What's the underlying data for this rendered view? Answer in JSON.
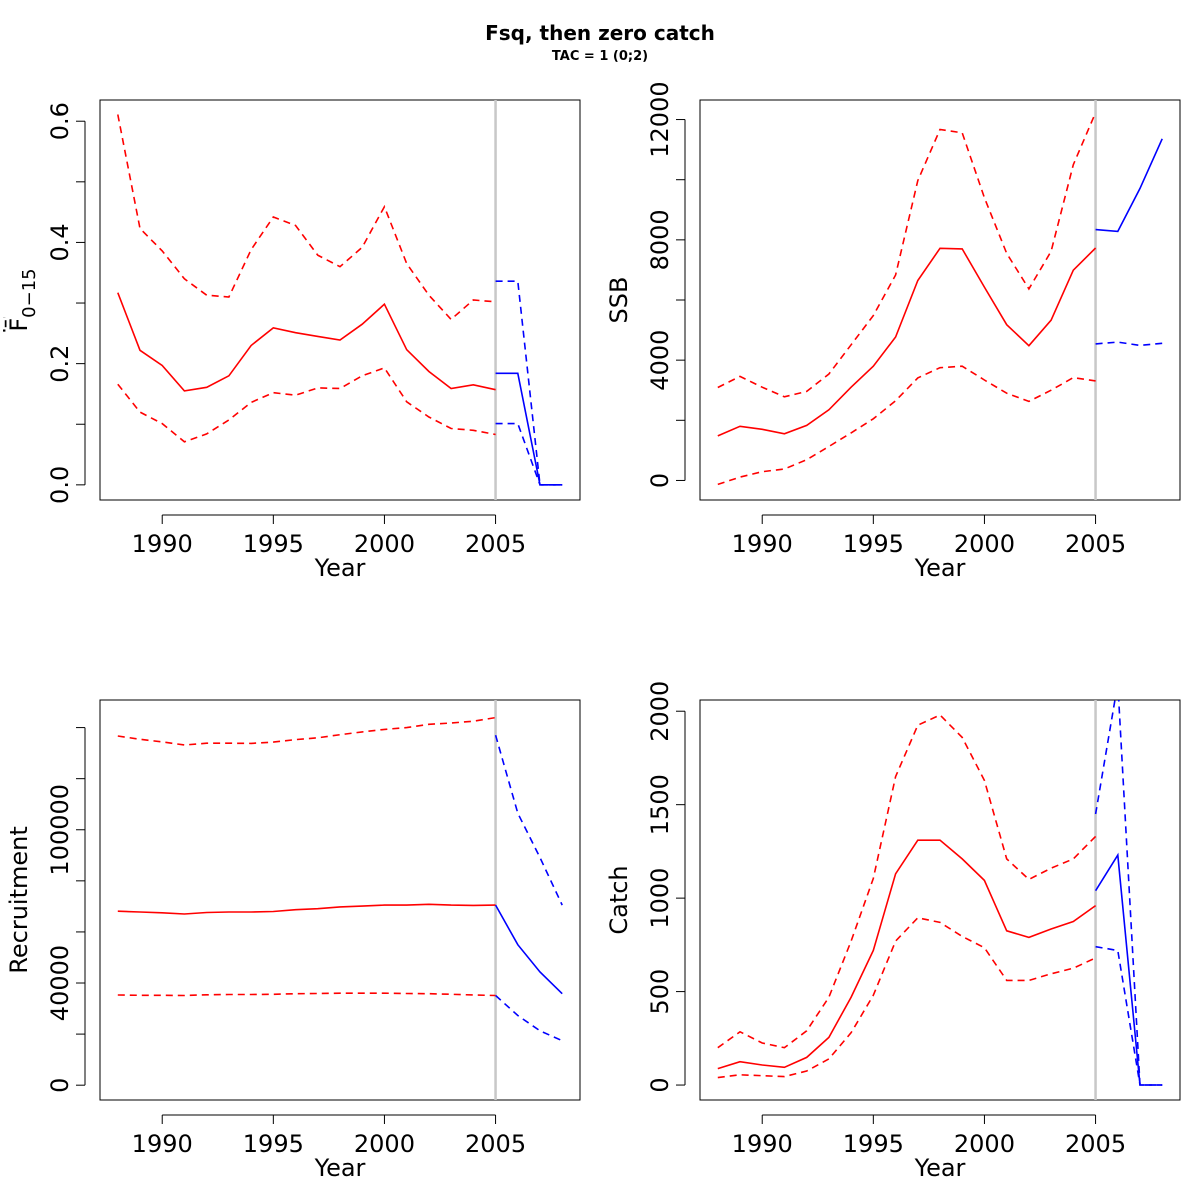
{
  "figure": {
    "title": "Fsq, then zero catch",
    "subtitle": "TAC = 1 (0;2)"
  },
  "colors": {
    "historical": "#ff0000",
    "projection": "#0000ff",
    "divider": "#c8c8c8",
    "axis": "#000000"
  },
  "chart_data": [
    {
      "type": "line",
      "panel": "top-left",
      "xlabel": "Year",
      "ylabel": "F̄",
      "ylabel_sub": "0−15",
      "xlim": [
        1987.2,
        2008.8
      ],
      "ylim": [
        -0.025,
        0.635
      ],
      "xticks": [
        1990,
        1995,
        2000,
        2005
      ],
      "yticks": [
        0.0,
        0.2,
        0.4,
        0.6
      ],
      "ytick_labels": [
        "0.0",
        "0.2",
        "0.4",
        "0.6"
      ],
      "yticks_minor": [
        0.1,
        0.3,
        0.5
      ],
      "divider_x": 2005,
      "series": [
        {
          "group": "historical",
          "style": "solid",
          "x": [
            1988,
            1989,
            1990,
            1991,
            1992,
            1993,
            1994,
            1995,
            1996,
            1997,
            1998,
            1999,
            2000,
            2001,
            2002,
            2003,
            2004,
            2005
          ],
          "y": [
            0.317,
            0.222,
            0.197,
            0.155,
            0.161,
            0.18,
            0.23,
            0.259,
            0.251,
            0.245,
            0.239,
            0.265,
            0.298,
            0.223,
            0.187,
            0.159,
            0.165,
            0.157
          ]
        },
        {
          "group": "historical",
          "style": "dashed",
          "x": [
            1988,
            1989,
            1990,
            1991,
            1992,
            1993,
            1994,
            1995,
            1996,
            1997,
            1998,
            1999,
            2000,
            2001,
            2002,
            2003,
            2004,
            2005
          ],
          "y": [
            0.611,
            0.423,
            0.386,
            0.34,
            0.313,
            0.31,
            0.388,
            0.442,
            0.428,
            0.379,
            0.36,
            0.392,
            0.459,
            0.365,
            0.313,
            0.273,
            0.305,
            0.302
          ]
        },
        {
          "group": "historical",
          "style": "dashed",
          "x": [
            1988,
            1989,
            1990,
            1991,
            1992,
            1993,
            1994,
            1995,
            1996,
            1997,
            1998,
            1999,
            2000,
            2001,
            2002,
            2003,
            2004,
            2005
          ],
          "y": [
            0.166,
            0.12,
            0.101,
            0.071,
            0.084,
            0.107,
            0.136,
            0.152,
            0.148,
            0.16,
            0.159,
            0.18,
            0.193,
            0.137,
            0.112,
            0.093,
            0.09,
            0.083
          ]
        },
        {
          "group": "projection",
          "style": "solid",
          "x": [
            2005,
            2006,
            2007,
            2008
          ],
          "y": [
            0.184,
            0.184,
            0.0,
            0.0
          ]
        },
        {
          "group": "projection",
          "style": "dashed",
          "x": [
            2005,
            2006,
            2007,
            2008
          ],
          "y": [
            0.336,
            0.336,
            0.0,
            0.0
          ]
        },
        {
          "group": "projection",
          "style": "dashed",
          "x": [
            2005,
            2006,
            2007,
            2008
          ],
          "y": [
            0.101,
            0.101,
            0.0,
            0.0
          ]
        }
      ]
    },
    {
      "type": "line",
      "panel": "top-right",
      "xlabel": "Year",
      "ylabel": "SSB",
      "xlim": [
        1987.2,
        2008.8
      ],
      "ylim": [
        -650,
        12650
      ],
      "xticks": [
        1990,
        1995,
        2000,
        2005
      ],
      "yticks": [
        0,
        4000,
        8000,
        12000
      ],
      "ytick_labels": [
        "0",
        "4000",
        "8000",
        "12000"
      ],
      "yticks_minor": [
        2000,
        6000,
        10000
      ],
      "divider_x": 2005,
      "series": [
        {
          "group": "historical",
          "style": "solid",
          "x": [
            1988,
            1989,
            1990,
            1991,
            1992,
            1993,
            1994,
            1995,
            1996,
            1997,
            1998,
            1999,
            2000,
            2001,
            2002,
            2003,
            2004,
            2005
          ],
          "y": [
            1480,
            1800,
            1700,
            1550,
            1830,
            2350,
            3100,
            3800,
            4770,
            6650,
            7720,
            7700,
            6430,
            5180,
            4480,
            5330,
            6990,
            7730
          ]
        },
        {
          "group": "historical",
          "style": "dashed",
          "x": [
            1988,
            1989,
            1990,
            1991,
            1992,
            1993,
            1994,
            1995,
            1996,
            1997,
            1998,
            1999,
            2000,
            2001,
            2002,
            2003,
            2004,
            2005
          ],
          "y": [
            3090,
            3460,
            3100,
            2780,
            2960,
            3540,
            4510,
            5480,
            6830,
            9970,
            11670,
            11560,
            9400,
            7550,
            6370,
            7620,
            10500,
            12230
          ]
        },
        {
          "group": "historical",
          "style": "dashed",
          "x": [
            1988,
            1989,
            1990,
            1991,
            1992,
            1993,
            1994,
            1995,
            1996,
            1997,
            1998,
            1999,
            2000,
            2001,
            2002,
            2003,
            2004,
            2005
          ],
          "y": [
            -130,
            110,
            290,
            380,
            690,
            1130,
            1580,
            2050,
            2650,
            3410,
            3750,
            3800,
            3340,
            2900,
            2630,
            3000,
            3420,
            3310
          ]
        },
        {
          "group": "projection",
          "style": "solid",
          "x": [
            2005,
            2006,
            2007,
            2008
          ],
          "y": [
            8340,
            8280,
            9710,
            11360
          ]
        },
        {
          "group": "projection",
          "style": "dashed",
          "x": [
            2005,
            2006,
            2007,
            2008
          ],
          "y": [
            4540,
            4600,
            4490,
            4560
          ]
        }
      ]
    },
    {
      "type": "line",
      "panel": "bottom-left",
      "xlabel": "Year",
      "ylabel": "Recruitment",
      "xlim": [
        1987.2,
        2008.8
      ],
      "ylim": [
        -5800,
        150800
      ],
      "xticks": [
        1990,
        1995,
        2000,
        2005
      ],
      "yticks": [
        0,
        40000,
        100000
      ],
      "ytick_labels": [
        "0",
        "40000",
        "100000"
      ],
      "yticks_minor": [
        20000,
        60000,
        80000,
        120000,
        140000
      ],
      "divider_x": 2005,
      "series": [
        {
          "group": "historical",
          "style": "solid",
          "x": [
            1988,
            1989,
            1990,
            1991,
            1992,
            1993,
            1994,
            1995,
            1996,
            1997,
            1998,
            1999,
            2000,
            2001,
            2002,
            2003,
            2004,
            2005
          ],
          "y": [
            68100,
            67800,
            67500,
            67000,
            67600,
            67800,
            67800,
            68000,
            68700,
            69100,
            69800,
            70100,
            70500,
            70500,
            70800,
            70500,
            70400,
            70500
          ]
        },
        {
          "group": "historical",
          "style": "dashed",
          "x": [
            1988,
            1989,
            1990,
            1991,
            1992,
            1993,
            1994,
            1995,
            1996,
            1997,
            1998,
            1999,
            2000,
            2001,
            2002,
            2003,
            2004,
            2005
          ],
          "y": [
            136700,
            135400,
            134400,
            133200,
            133900,
            133900,
            133800,
            134300,
            135300,
            136000,
            137200,
            138300,
            139300,
            140000,
            141300,
            141800,
            142500,
            143900
          ]
        },
        {
          "group": "historical",
          "style": "dashed",
          "x": [
            1988,
            1989,
            1990,
            1991,
            1992,
            1993,
            1994,
            1995,
            1996,
            1997,
            1998,
            1999,
            2000,
            2001,
            2002,
            2003,
            2004,
            2005
          ],
          "y": [
            35300,
            35200,
            35200,
            35100,
            35400,
            35500,
            35500,
            35600,
            35800,
            35900,
            36000,
            36000,
            36000,
            35900,
            35800,
            35600,
            35300,
            35100
          ]
        },
        {
          "group": "projection",
          "style": "solid",
          "x": [
            2005,
            2006,
            2007,
            2008
          ],
          "y": [
            70500,
            55000,
            44300,
            35800
          ]
        },
        {
          "group": "projection",
          "style": "dashed",
          "x": [
            2005,
            2006,
            2007,
            2008
          ],
          "y": [
            137000,
            106500,
            89100,
            70500
          ]
        },
        {
          "group": "projection",
          "style": "dashed",
          "x": [
            2005,
            2006,
            2007,
            2008
          ],
          "y": [
            35100,
            27300,
            21300,
            17400
          ]
        }
      ]
    },
    {
      "type": "line",
      "panel": "bottom-right",
      "xlabel": "Year",
      "ylabel": "Catch",
      "xlim": [
        1987.2,
        2008.8
      ],
      "ylim": [
        -80,
        2060
      ],
      "xticks": [
        1990,
        1995,
        2000,
        2005
      ],
      "yticks": [
        0,
        500,
        1000,
        1500,
        2000
      ],
      "ytick_labels": [
        "0",
        "500",
        "1000",
        "1500",
        "2000"
      ],
      "yticks_minor": [],
      "divider_x": 2005,
      "series": [
        {
          "group": "historical",
          "style": "solid",
          "x": [
            1988,
            1989,
            1990,
            1991,
            1992,
            1993,
            1994,
            1995,
            1996,
            1997,
            1998,
            1999,
            2000,
            2001,
            2002,
            2003,
            2004,
            2005
          ],
          "y": [
            88,
            125,
            107,
            95,
            148,
            255,
            470,
            720,
            1130,
            1310,
            1310,
            1210,
            1095,
            825,
            790,
            835,
            875,
            960
          ]
        },
        {
          "group": "historical",
          "style": "dashed",
          "x": [
            1988,
            1989,
            1990,
            1991,
            1992,
            1993,
            1994,
            1995,
            1996,
            1997,
            1998,
            1999,
            2000,
            2001,
            2002,
            2003,
            2004,
            2005
          ],
          "y": [
            200,
            285,
            225,
            200,
            290,
            470,
            770,
            1105,
            1650,
            1925,
            1980,
            1860,
            1630,
            1210,
            1100,
            1160,
            1210,
            1330
          ]
        },
        {
          "group": "historical",
          "style": "dashed",
          "x": [
            1988,
            1989,
            1990,
            1991,
            1992,
            1993,
            1994,
            1995,
            1996,
            1997,
            1998,
            1999,
            2000,
            2001,
            2002,
            2003,
            2004,
            2005
          ],
          "y": [
            40,
            55,
            50,
            45,
            75,
            140,
            280,
            480,
            770,
            895,
            870,
            795,
            735,
            560,
            560,
            595,
            625,
            680
          ]
        },
        {
          "group": "projection",
          "style": "solid",
          "x": [
            2005,
            2006,
            2007,
            2008
          ],
          "y": [
            1040,
            1230,
            0,
            0
          ]
        },
        {
          "group": "projection",
          "style": "dashed",
          "x": [
            2005,
            2006,
            2007,
            2008
          ],
          "y": [
            1450,
            2150,
            0,
            0
          ]
        },
        {
          "group": "projection",
          "style": "dashed",
          "x": [
            2005,
            2006,
            2007,
            2008
          ],
          "y": [
            740,
            720,
            0,
            0
          ]
        }
      ]
    }
  ]
}
